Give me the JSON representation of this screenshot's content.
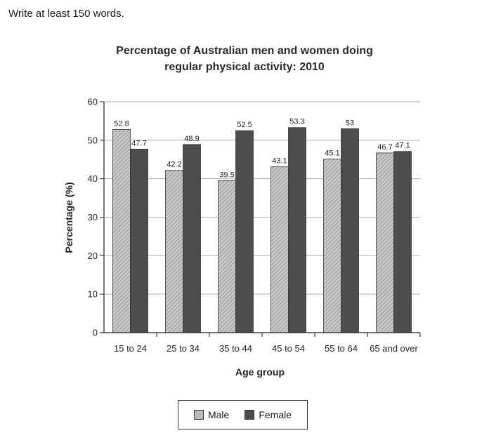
{
  "instruction": "Write at least 150 words.",
  "chart_data": {
    "type": "bar",
    "title_line1": "Percentage of Australian men and women doing",
    "title_line2": "regular physical activity: 2010",
    "xlabel": "Age group",
    "ylabel": "Percentage (%)",
    "categories": [
      "15 to 24",
      "25 to 34",
      "35 to 44",
      "45 to 54",
      "55 to 64",
      "65 and over"
    ],
    "series": [
      {
        "name": "Male",
        "values": [
          52.8,
          42.2,
          39.5,
          43.1,
          45.1,
          46.7
        ],
        "value_labels": [
          "52.8",
          "42.2",
          "39.5",
          "43.1",
          "45.1",
          "46.7"
        ]
      },
      {
        "name": "Female",
        "values": [
          47.7,
          48.9,
          52.5,
          53.3,
          53,
          47.1
        ],
        "value_labels": [
          "47.7",
          "48.9",
          "52.5",
          "53.3",
          "53",
          "47.1"
        ]
      }
    ],
    "ylim": [
      0,
      60
    ],
    "yticks": [
      "0",
      "10",
      "20",
      "30",
      "40",
      "50",
      "60"
    ],
    "grid": true,
    "legend_position": "bottom",
    "colors": {
      "male_fill": "#c8c8c8",
      "male_hatch": "#7a7a7a",
      "female_fill": "#4d4d4d",
      "grid": "#b0b0b0"
    }
  }
}
